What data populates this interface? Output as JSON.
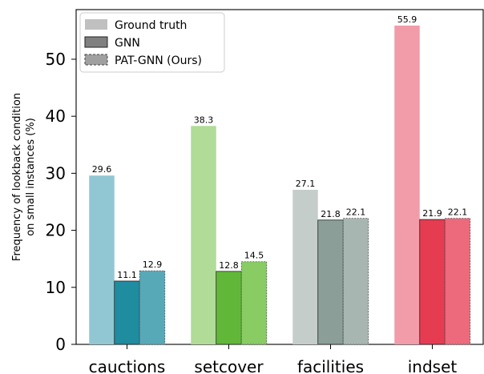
{
  "chart_data": {
    "type": "bar",
    "title": "",
    "xlabel": "",
    "ylabel": "Frequency of lookback condition\non small instances (%)",
    "ylim": [
      0,
      58.7
    ],
    "yticks": [
      0,
      10,
      20,
      30,
      40,
      50
    ],
    "categories": [
      "cauctions",
      "setcover",
      "facilities",
      "indset"
    ],
    "series": [
      {
        "name": "Ground truth",
        "values": [
          29.6,
          38.3,
          27.1,
          55.9
        ],
        "style": "light"
      },
      {
        "name": "GNN",
        "values": [
          11.1,
          12.8,
          21.8,
          21.9
        ],
        "style": "solid-edge"
      },
      {
        "name": "PAT-GNN (Ours)",
        "values": [
          12.9,
          14.5,
          22.1,
          22.1
        ],
        "style": "dashed-edge"
      }
    ],
    "colors": [
      [
        "#90c7d2",
        "#1f8ca0",
        "#58a9b8"
      ],
      [
        "#b0dc97",
        "#61b838",
        "#88cc63"
      ],
      [
        "#c5cdcb",
        "#8b9e98",
        "#a8b6b2"
      ],
      [
        "#f19ca8",
        "#e63c52",
        "#ec6a7b"
      ]
    ],
    "legend": {
      "placement": "top-left",
      "swatch_colors": [
        "#c0c0c0",
        "#808080",
        "#a0a0a0"
      ]
    },
    "grid": false
  }
}
